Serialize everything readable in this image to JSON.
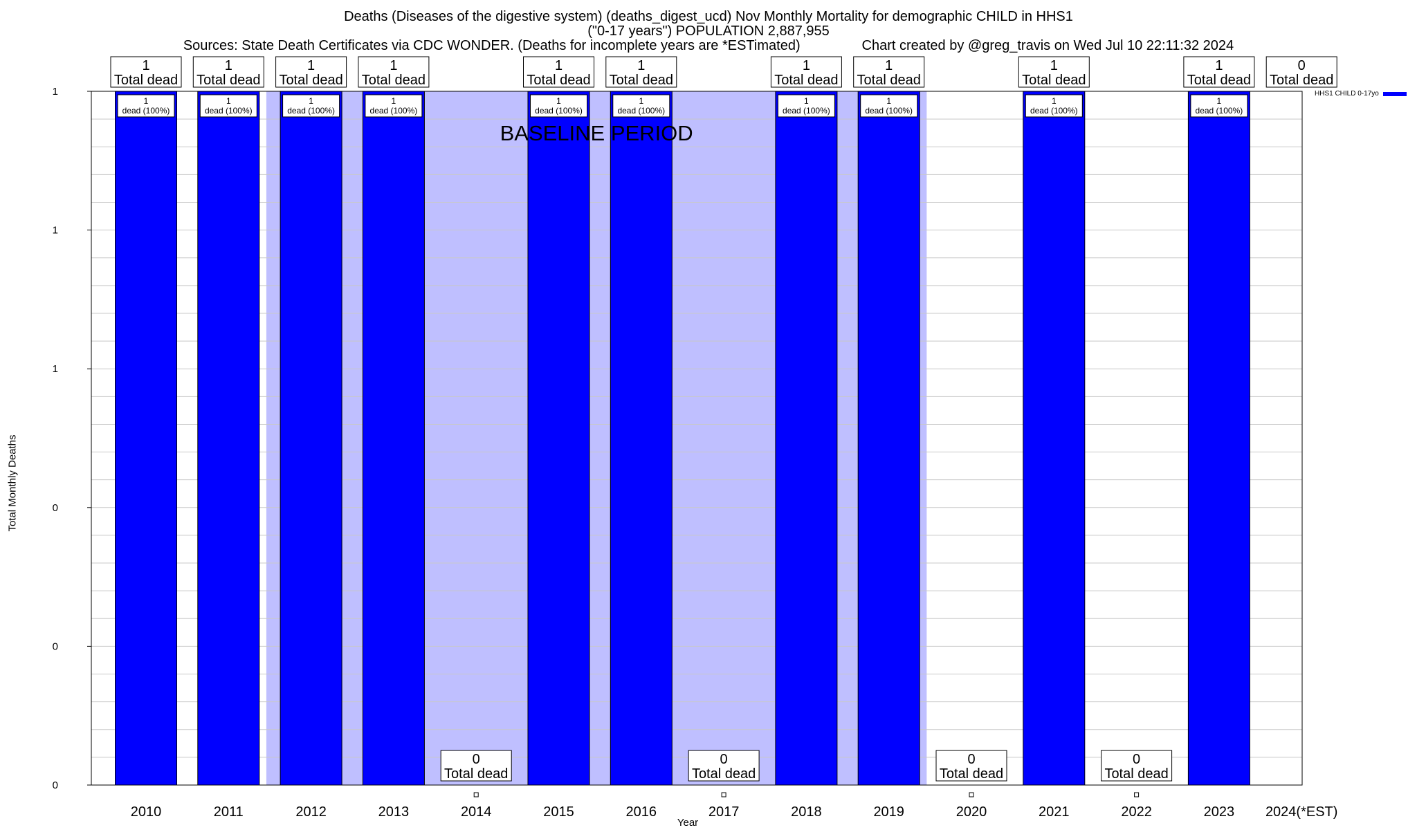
{
  "chart_data": {
    "type": "bar",
    "title_lines": [
      "Deaths (Diseases of the digestive system) (deaths_digest_ucd) Nov Monthly Mortality for demographic CHILD in HHS1",
      "(\"0-17 years\") POPULATION 2,887,955",
      "Sources: State Death Certificates via CDC WONDER. (Deaths for incomplete years are *ESTimated)                Chart created by @greg_travis on Wed Jul 10 22:11:32 2024"
    ],
    "xlabel": "Year",
    "ylabel": "Total Monthly Deaths",
    "ylim": [
      0,
      1
    ],
    "y_tick_values": [
      0,
      0.2,
      0.4,
      0.6,
      0.8,
      1.0
    ],
    "y_tick_labels": [
      "0",
      "0",
      "0",
      "1",
      "1",
      "1"
    ],
    "categories": [
      "2010",
      "2011",
      "2012",
      "2013",
      "2014",
      "2015",
      "2016",
      "2017",
      "2018",
      "2019",
      "2020",
      "2021",
      "2022",
      "2023",
      "2024(*EST)"
    ],
    "series": [
      {
        "name": "HHS1 CHILD 0-17yo",
        "color": "#0000ff",
        "values": [
          1,
          1,
          1,
          1,
          0,
          1,
          1,
          0,
          1,
          1,
          0,
          1,
          0,
          1,
          0
        ]
      }
    ],
    "total_labels": [
      "1",
      "1",
      "1",
      "1",
      "0",
      "1",
      "1",
      "0",
      "1",
      "1",
      "0",
      "1",
      "0",
      "1",
      "0"
    ],
    "total_suffix": "Total dead",
    "bar_labels": [
      [
        "1",
        "dead (100%)"
      ],
      [
        "1",
        "dead (100%)"
      ],
      [
        "1",
        "dead (100%)"
      ],
      [
        "1",
        "dead (100%)"
      ],
      null,
      [
        "1",
        "dead (100%)"
      ],
      [
        "1",
        "dead (100%)"
      ],
      null,
      [
        "1",
        "dead (100%)"
      ],
      [
        "1",
        "dead (100%)"
      ],
      null,
      [
        "1",
        "dead (100%)"
      ],
      null,
      [
        "1",
        "dead (100%)"
      ],
      null
    ],
    "baseline": {
      "label": "BASELINE PERIOD",
      "from_category": "2012",
      "to_category": "2019",
      "color": "#bfbfff"
    },
    "grid": true,
    "legend_placement": "top-right outside"
  }
}
